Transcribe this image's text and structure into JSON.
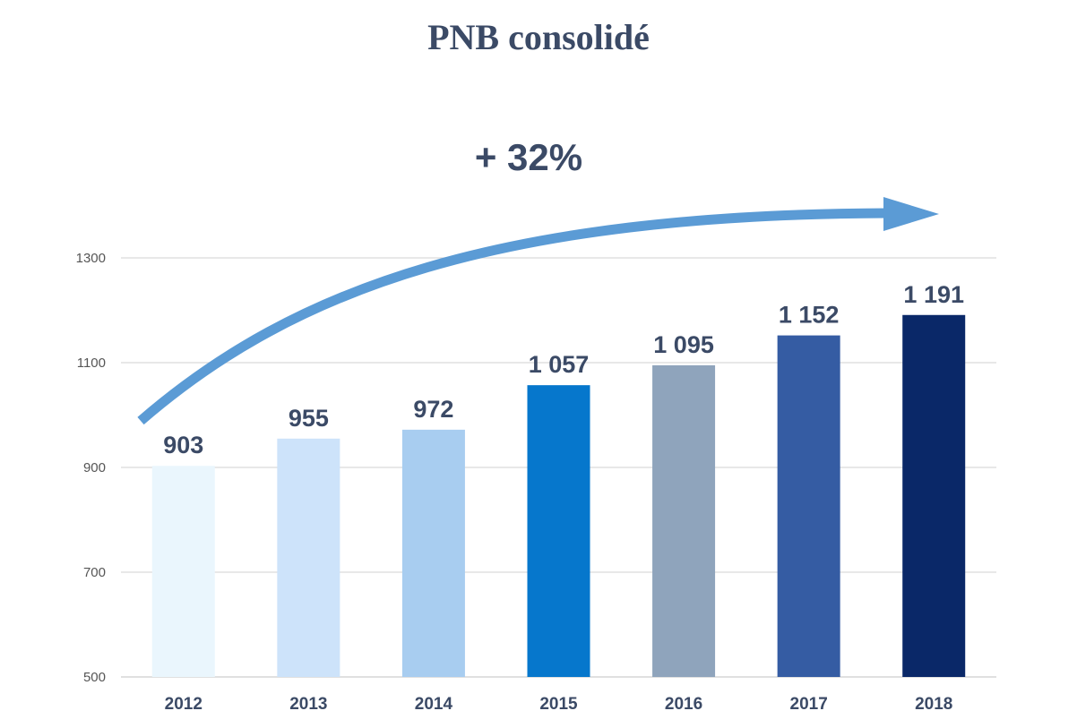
{
  "chart_data": {
    "type": "bar",
    "title": "PNB consolidé",
    "annotation": "+ 32%",
    "categories": [
      "2012",
      "2013",
      "2014",
      "2015",
      "2016",
      "2017",
      "2018"
    ],
    "values": [
      903,
      955,
      972,
      1057,
      1095,
      1152,
      1191
    ],
    "value_labels": [
      "903",
      "955",
      "972",
      "1 057",
      "1 095",
      "1 152",
      "1 191"
    ],
    "bar_colors": [
      "#eaf6fd",
      "#cde3fa",
      "#a8cdf0",
      "#0677cc",
      "#8fa4bc",
      "#355ca3",
      "#0a2868"
    ],
    "ylim": [
      500,
      1300
    ],
    "yticks": [
      500,
      700,
      900,
      1100,
      1300
    ],
    "grid": true,
    "arrow_color": "#5b9bd5"
  }
}
